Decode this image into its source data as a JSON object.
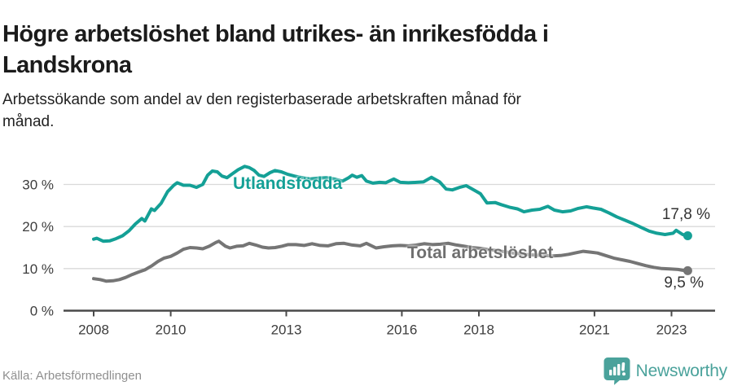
{
  "header": {
    "title_line1": "Högre arbetslöshet bland utrikes- än inrikesfödda i",
    "title_line2": "Landskrona",
    "subtitle_line1": "Arbetssökande som andel av den registerbaserade arbetskraften månad för",
    "subtitle_line2": "månad."
  },
  "chart_data": {
    "type": "line",
    "title": "Högre arbetslöshet bland utrikes- än inrikesfödda i Landskrona",
    "subtitle": "Arbetssökande som andel av den registerbaserade arbetskraften månad för månad.",
    "xlabel": "",
    "ylabel": "",
    "x_unit": "decimal year",
    "y_unit": "percent",
    "xlim": [
      2007.2,
      2024.1
    ],
    "ylim": [
      0,
      36
    ],
    "grid": "horizontal",
    "legend_position": "inline-labels",
    "xticks": [
      2008,
      2010,
      2013,
      2016,
      2018,
      2021,
      2023
    ],
    "ytick_values": [
      0,
      10,
      20,
      30
    ],
    "ytick_labels": [
      "0 %",
      "10 %",
      "20 %",
      "30 %"
    ],
    "series": [
      {
        "name": "Utlandsfödda",
        "color": "#14a096",
        "end_value": 17.8,
        "end_label": "17,8 %",
        "points": [
          [
            2008.0,
            17.0
          ],
          [
            2008.08,
            17.2
          ],
          [
            2008.25,
            16.5
          ],
          [
            2008.42,
            16.6
          ],
          [
            2008.58,
            17.1
          ],
          [
            2008.75,
            17.8
          ],
          [
            2008.92,
            19.0
          ],
          [
            2009.08,
            20.6
          ],
          [
            2009.25,
            21.9
          ],
          [
            2009.33,
            21.3
          ],
          [
            2009.5,
            24.2
          ],
          [
            2009.58,
            23.8
          ],
          [
            2009.75,
            25.5
          ],
          [
            2009.92,
            28.3
          ],
          [
            2010.08,
            29.8
          ],
          [
            2010.17,
            30.4
          ],
          [
            2010.33,
            29.8
          ],
          [
            2010.5,
            29.8
          ],
          [
            2010.67,
            29.3
          ],
          [
            2010.83,
            30.0
          ],
          [
            2010.96,
            32.2
          ],
          [
            2011.08,
            33.2
          ],
          [
            2011.21,
            33.0
          ],
          [
            2011.33,
            32.0
          ],
          [
            2011.46,
            31.6
          ],
          [
            2011.58,
            32.4
          ],
          [
            2011.75,
            33.5
          ],
          [
            2011.92,
            34.3
          ],
          [
            2012.04,
            34.0
          ],
          [
            2012.17,
            33.3
          ],
          [
            2012.29,
            32.2
          ],
          [
            2012.42,
            31.9
          ],
          [
            2012.58,
            32.8
          ],
          [
            2012.71,
            33.3
          ],
          [
            2012.87,
            33.0
          ],
          [
            2013.04,
            32.4
          ],
          [
            2013.21,
            32.0
          ],
          [
            2013.42,
            31.6
          ],
          [
            2013.62,
            31.3
          ],
          [
            2013.83,
            31.5
          ],
          [
            2014.04,
            31.6
          ],
          [
            2014.25,
            31.3
          ],
          [
            2014.46,
            30.8
          ],
          [
            2014.62,
            31.6
          ],
          [
            2014.71,
            32.2
          ],
          [
            2014.83,
            31.7
          ],
          [
            2014.96,
            32.1
          ],
          [
            2015.08,
            30.8
          ],
          [
            2015.25,
            30.3
          ],
          [
            2015.42,
            30.5
          ],
          [
            2015.58,
            30.4
          ],
          [
            2015.79,
            31.3
          ],
          [
            2015.96,
            30.5
          ],
          [
            2016.17,
            30.4
          ],
          [
            2016.38,
            30.5
          ],
          [
            2016.56,
            30.6
          ],
          [
            2016.77,
            31.7
          ],
          [
            2016.98,
            30.6
          ],
          [
            2017.15,
            28.9
          ],
          [
            2017.31,
            28.7
          ],
          [
            2017.5,
            29.3
          ],
          [
            2017.67,
            29.7
          ],
          [
            2017.83,
            28.9
          ],
          [
            2018.04,
            27.8
          ],
          [
            2018.21,
            25.6
          ],
          [
            2018.42,
            25.7
          ],
          [
            2018.58,
            25.2
          ],
          [
            2018.79,
            24.6
          ],
          [
            2019.0,
            24.2
          ],
          [
            2019.17,
            23.5
          ],
          [
            2019.38,
            23.9
          ],
          [
            2019.58,
            24.1
          ],
          [
            2019.79,
            24.8
          ],
          [
            2019.96,
            23.9
          ],
          [
            2020.17,
            23.5
          ],
          [
            2020.38,
            23.7
          ],
          [
            2020.58,
            24.3
          ],
          [
            2020.79,
            24.7
          ],
          [
            2020.96,
            24.4
          ],
          [
            2021.17,
            24.1
          ],
          [
            2021.38,
            23.2
          ],
          [
            2021.58,
            22.3
          ],
          [
            2021.79,
            21.5
          ],
          [
            2022.0,
            20.7
          ],
          [
            2022.21,
            19.8
          ],
          [
            2022.42,
            18.9
          ],
          [
            2022.62,
            18.4
          ],
          [
            2022.83,
            18.1
          ],
          [
            2023.04,
            18.4
          ],
          [
            2023.12,
            19.1
          ],
          [
            2023.29,
            18.1
          ],
          [
            2023.42,
            17.8
          ]
        ]
      },
      {
        "name": "Total arbetslöshet",
        "color": "#757575",
        "end_value": 9.5,
        "end_label": "9,5 %",
        "points": [
          [
            2008.0,
            7.6
          ],
          [
            2008.17,
            7.4
          ],
          [
            2008.33,
            7.0
          ],
          [
            2008.5,
            7.1
          ],
          [
            2008.67,
            7.4
          ],
          [
            2008.83,
            7.9
          ],
          [
            2009.0,
            8.6
          ],
          [
            2009.17,
            9.2
          ],
          [
            2009.33,
            9.7
          ],
          [
            2009.5,
            10.6
          ],
          [
            2009.67,
            11.7
          ],
          [
            2009.83,
            12.5
          ],
          [
            2010.0,
            12.9
          ],
          [
            2010.17,
            13.7
          ],
          [
            2010.33,
            14.6
          ],
          [
            2010.5,
            15.0
          ],
          [
            2010.67,
            14.9
          ],
          [
            2010.83,
            14.7
          ],
          [
            2011.0,
            15.3
          ],
          [
            2011.17,
            16.2
          ],
          [
            2011.25,
            16.5
          ],
          [
            2011.42,
            15.3
          ],
          [
            2011.54,
            14.9
          ],
          [
            2011.71,
            15.3
          ],
          [
            2011.88,
            15.4
          ],
          [
            2012.04,
            16.0
          ],
          [
            2012.21,
            15.6
          ],
          [
            2012.38,
            15.1
          ],
          [
            2012.54,
            14.9
          ],
          [
            2012.71,
            15.0
          ],
          [
            2012.88,
            15.3
          ],
          [
            2013.04,
            15.7
          ],
          [
            2013.25,
            15.7
          ],
          [
            2013.46,
            15.5
          ],
          [
            2013.67,
            15.9
          ],
          [
            2013.88,
            15.5
          ],
          [
            2014.08,
            15.4
          ],
          [
            2014.29,
            15.9
          ],
          [
            2014.5,
            16.0
          ],
          [
            2014.71,
            15.6
          ],
          [
            2014.92,
            15.4
          ],
          [
            2015.08,
            16.0
          ],
          [
            2015.33,
            14.9
          ],
          [
            2015.54,
            15.2
          ],
          [
            2015.75,
            15.4
          ],
          [
            2015.96,
            15.5
          ],
          [
            2016.17,
            15.4
          ],
          [
            2016.38,
            15.6
          ],
          [
            2016.58,
            15.9
          ],
          [
            2016.79,
            15.7
          ],
          [
            2017.0,
            15.8
          ],
          [
            2017.21,
            16.0
          ],
          [
            2017.42,
            15.6
          ],
          [
            2017.62,
            15.3
          ],
          [
            2017.83,
            15.0
          ],
          [
            2018.04,
            14.8
          ],
          [
            2018.25,
            14.5
          ],
          [
            2018.46,
            14.3
          ],
          [
            2018.67,
            14.0
          ],
          [
            2018.88,
            13.7
          ],
          [
            2019.08,
            13.5
          ],
          [
            2019.29,
            13.3
          ],
          [
            2019.5,
            13.2
          ],
          [
            2019.71,
            13.1
          ],
          [
            2019.92,
            13.0
          ],
          [
            2020.12,
            13.1
          ],
          [
            2020.33,
            13.4
          ],
          [
            2020.54,
            13.8
          ],
          [
            2020.71,
            14.1
          ],
          [
            2020.92,
            13.9
          ],
          [
            2021.08,
            13.7
          ],
          [
            2021.29,
            13.1
          ],
          [
            2021.5,
            12.5
          ],
          [
            2021.71,
            12.1
          ],
          [
            2021.92,
            11.7
          ],
          [
            2022.12,
            11.2
          ],
          [
            2022.33,
            10.7
          ],
          [
            2022.54,
            10.3
          ],
          [
            2022.75,
            10.0
          ],
          [
            2022.96,
            9.9
          ],
          [
            2023.17,
            9.8
          ],
          [
            2023.29,
            9.6
          ],
          [
            2023.42,
            9.5
          ]
        ]
      }
    ]
  },
  "footer": {
    "source": "Källa: Arbetsförmedlingen",
    "brand": "Newsworthy"
  },
  "colors": {
    "accent_teal": "#14a096",
    "series_gray": "#757575",
    "logo_teal": "#4aa29b",
    "gridline": "#d9d9d9",
    "axis": "#4a4a4a"
  }
}
